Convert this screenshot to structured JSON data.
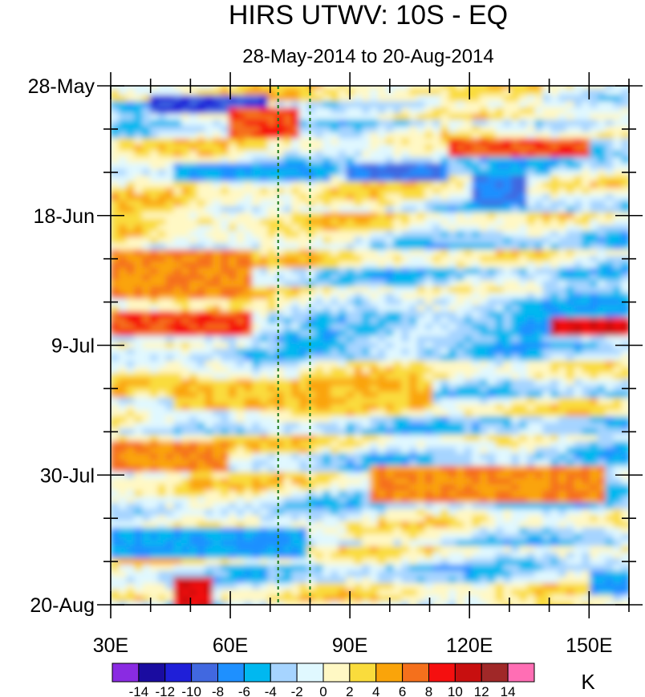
{
  "chart_data": {
    "type": "heatmap",
    "title": "HIRS UTWV: 10S - EQ",
    "subtitle": "28-May-2014 to 20-Aug-2014",
    "xlabel": "",
    "ylabel": "",
    "x_range_deg_east": [
      30,
      160
    ],
    "time_range": [
      "28-May-2014",
      "20-Aug-2014"
    ],
    "x_ticks": [
      {
        "value": 30,
        "label": "30E"
      },
      {
        "value": 60,
        "label": "60E"
      },
      {
        "value": 90,
        "label": "90E"
      },
      {
        "value": 120,
        "label": "120E"
      },
      {
        "value": 150,
        "label": "150E"
      }
    ],
    "y_ticks": [
      {
        "day": 0,
        "label": "28-May"
      },
      {
        "day": 21,
        "label": "18-Jun"
      },
      {
        "day": 42,
        "label": "9-Jul"
      },
      {
        "day": 63,
        "label": "30-Jul"
      },
      {
        "day": 84,
        "label": "20-Aug"
      }
    ],
    "reference_lines_lon": [
      72,
      80
    ],
    "colorbar": {
      "unit": "K",
      "levels": [
        -14,
        -12,
        -10,
        -8,
        -6,
        -4,
        -2,
        0,
        2,
        4,
        6,
        8,
        10,
        12,
        14
      ],
      "labels": [
        "-14",
        "-12",
        "-10",
        "-8",
        "-6",
        "-4",
        "-2",
        "0",
        "2",
        "4",
        "6",
        "8",
        "10",
        "12",
        "14"
      ],
      "colors": [
        "#8a2be2",
        "#1a0ca0",
        "#1f1fd8",
        "#4168e0",
        "#1e90ff",
        "#00b8f0",
        "#a6d4ff",
        "#e0f8ff",
        "#fff8c4",
        "#fadc3c",
        "#faa40a",
        "#f5701c",
        "#f50f0f",
        "#c80f0f",
        "#a02828",
        "#ff6eb4"
      ]
    },
    "anomaly_features": [
      {
        "lon": [
          40,
          70
        ],
        "day": [
          2,
          4
        ],
        "value": -10
      },
      {
        "lon": [
          60,
          78
        ],
        "day": [
          4,
          8
        ],
        "value": 8
      },
      {
        "lon": [
          115,
          150
        ],
        "day": [
          9,
          11
        ],
        "value": 8
      },
      {
        "lon": [
          45,
          85
        ],
        "day": [
          13,
          15
        ],
        "value": -6
      },
      {
        "lon": [
          90,
          115
        ],
        "day": [
          13,
          15
        ],
        "value": -8
      },
      {
        "lon": [
          120,
          135
        ],
        "day": [
          15,
          19
        ],
        "value": -8
      },
      {
        "lon": [
          30,
          65
        ],
        "day": [
          27,
          34
        ],
        "value": 6
      },
      {
        "lon": [
          30,
          65
        ],
        "day": [
          37,
          40
        ],
        "value": 8
      },
      {
        "lon": [
          140,
          160
        ],
        "day": [
          38,
          40
        ],
        "value": 10
      },
      {
        "lon": [
          45,
          110
        ],
        "day": [
          48,
          52
        ],
        "value": 4
      },
      {
        "lon": [
          30,
          60
        ],
        "day": [
          58,
          62
        ],
        "value": 6
      },
      {
        "lon": [
          95,
          155
        ],
        "day": [
          62,
          67
        ],
        "value": 6
      },
      {
        "lon": [
          30,
          80
        ],
        "day": [
          72,
          76
        ],
        "value": -6
      },
      {
        "lon": [
          45,
          55
        ],
        "day": [
          80,
          84
        ],
        "value": 10
      },
      {
        "lon": [
          150,
          160
        ],
        "day": [
          79,
          82
        ],
        "value": -6
      }
    ]
  }
}
